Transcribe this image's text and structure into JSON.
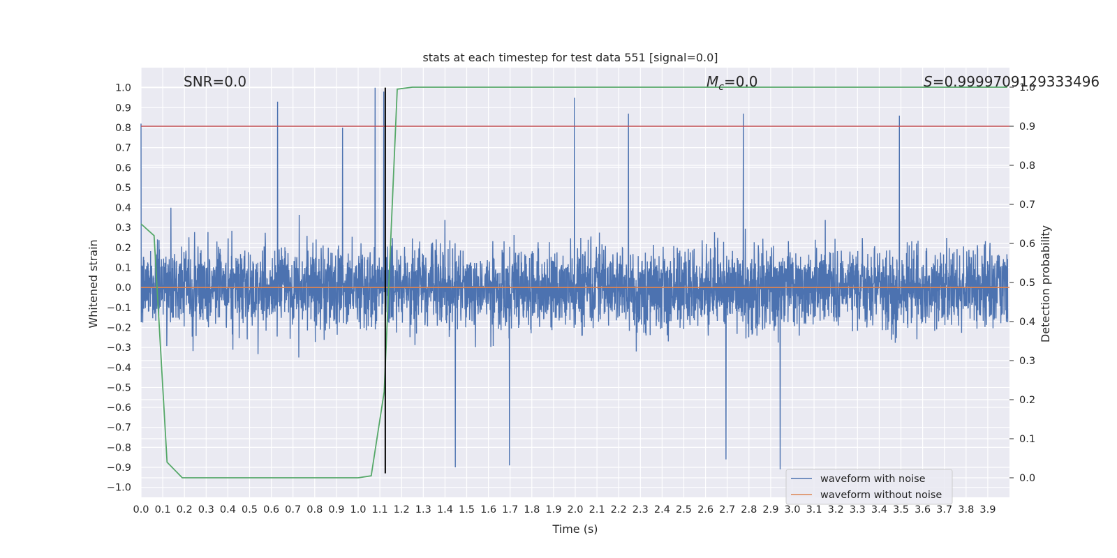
{
  "chart_data": {
    "type": "line",
    "title": "stats at each timestep for test data 551 [signal=0.0]",
    "xlabel": "Time (s)",
    "ylabel": "Whitened strain",
    "y2label": "Detection probability",
    "xlim": [
      0.0,
      4.0
    ],
    "ylim": [
      -1.05,
      1.1
    ],
    "y2lim": [
      -0.05,
      1.05
    ],
    "x_ticks": [
      "0.0",
      "0.1",
      "0.2",
      "0.3",
      "0.4",
      "0.5",
      "0.6",
      "0.7",
      "0.8",
      "0.9",
      "1.0",
      "1.1",
      "1.2",
      "1.3",
      "1.4",
      "1.5",
      "1.6",
      "1.7",
      "1.8",
      "1.9",
      "2.0",
      "2.1",
      "2.2",
      "2.3",
      "2.4",
      "2.5",
      "2.6",
      "2.7",
      "2.8",
      "2.9",
      "3.0",
      "3.1",
      "3.2",
      "3.3",
      "3.4",
      "3.5",
      "3.6",
      "3.7",
      "3.8",
      "3.9"
    ],
    "y_ticks": [
      "1.0",
      "0.9",
      "0.8",
      "0.7",
      "0.6",
      "0.5",
      "0.4",
      "0.3",
      "0.2",
      "0.1",
      "0.0",
      "−0.1",
      "−0.2",
      "−0.3",
      "−0.4",
      "−0.5",
      "−0.6",
      "−0.7",
      "−0.8",
      "−0.9",
      "−1.0"
    ],
    "y2_ticks": [
      "1.0",
      "0.9",
      "0.8",
      "0.7",
      "0.6",
      "0.5",
      "0.4",
      "0.3",
      "0.2",
      "0.1",
      "0.0"
    ],
    "grid": true,
    "legend_placement": "lower right",
    "annotations": {
      "snr": "SNR=0.0",
      "mc_symbol": "M",
      "mc_sub": "c",
      "mc_value": "=0.0",
      "s_symbol": "S",
      "s_value": "=0.9999709129333496"
    },
    "series": [
      {
        "name": "waveform with noise",
        "color": "#4c72b0",
        "description": "whitened strain noise, |strain| peaks near 1.0",
        "noise_amplitude": 0.2,
        "peaks": [
          [
            0.0,
            0.82
          ],
          [
            0.63,
            0.93
          ],
          [
            0.93,
            0.8
          ],
          [
            1.08,
            1.0
          ],
          [
            1.12,
            0.98
          ],
          [
            2.0,
            0.95
          ],
          [
            2.25,
            0.87
          ],
          [
            2.78,
            0.87
          ],
          [
            3.5,
            0.86
          ],
          [
            1.45,
            -0.9
          ],
          [
            1.7,
            -0.89
          ],
          [
            2.7,
            -0.86
          ],
          [
            2.95,
            -0.91
          ]
        ]
      },
      {
        "name": "waveform without noise",
        "color": "#dd8452",
        "y_constant": 0.0
      }
    ],
    "detection_probability": {
      "color": "#55a868",
      "x": [
        0.0,
        0.06,
        0.12,
        0.19,
        0.5,
        1.0,
        1.06,
        1.12,
        1.18,
        1.25,
        1.5,
        2.0,
        3.0,
        3.99
      ],
      "y": [
        0.65,
        0.62,
        0.04,
        0.0,
        0.0,
        0.0,
        0.005,
        0.22,
        0.995,
        1.0,
        1.0,
        1.0,
        1.0,
        1.0
      ]
    },
    "threshold": {
      "color": "#c44e52",
      "y2": 0.9
    },
    "event_marker": {
      "color": "#000000",
      "x": 1.125,
      "y_range": [
        -0.93,
        1.0
      ]
    }
  }
}
